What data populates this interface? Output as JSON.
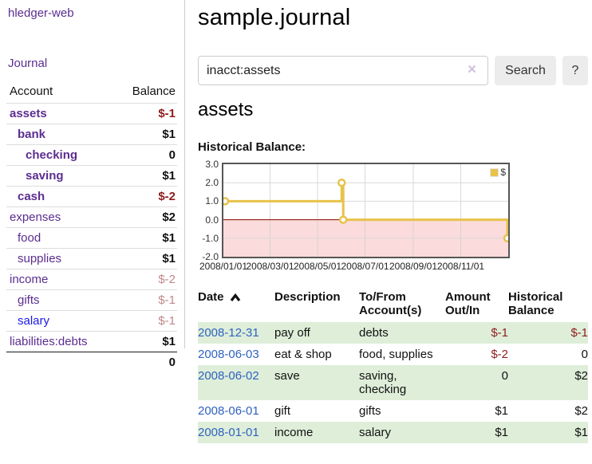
{
  "sidebar": {
    "brand": "hledger-web",
    "nav_journal": "Journal",
    "table": {
      "col_account": "Account",
      "col_balance": "Balance",
      "accounts": [
        {
          "name": "assets",
          "balance": "$-1",
          "indent": 1,
          "emphasized": true,
          "negative": "strong"
        },
        {
          "name": "bank",
          "balance": "$1",
          "indent": 2,
          "emphasized": true
        },
        {
          "name": "checking",
          "balance": "0",
          "indent": 3,
          "emphasized": true
        },
        {
          "name": "saving",
          "balance": "$1",
          "indent": 3,
          "emphasized": true
        },
        {
          "name": "cash",
          "balance": "$-2",
          "indent": 2,
          "emphasized": true,
          "negative": "strong"
        },
        {
          "name": "expenses",
          "balance": "$2",
          "indent": 1
        },
        {
          "name": "food",
          "balance": "$1",
          "indent": 2
        },
        {
          "name": "supplies",
          "balance": "$1",
          "indent": 2
        },
        {
          "name": "income",
          "balance": "$-2",
          "indent": 1,
          "negative": "soft"
        },
        {
          "name": "gifts",
          "balance": "$-1",
          "indent": 2,
          "negative": "soft"
        },
        {
          "name": "salary",
          "balance": "$-1",
          "indent": 2,
          "negative": "soft",
          "link": "blue"
        },
        {
          "name": "liabilities:debts",
          "balance": "$1",
          "indent": 1
        }
      ],
      "total": "0"
    }
  },
  "header": {
    "title": "sample.journal"
  },
  "search": {
    "query": "inacct:assets",
    "clear_icon": "×",
    "search_label": "Search",
    "help_label": "?"
  },
  "account_page": {
    "heading": "assets",
    "chart_title": "Historical Balance:"
  },
  "chart_data": {
    "type": "line",
    "title": "Historical Balance:",
    "step": "after",
    "x": [
      "2008-01-01",
      "2008-06-01",
      "2008-06-03",
      "2008-12-31"
    ],
    "series": [
      {
        "name": "$",
        "color": "#e8c24a",
        "values": [
          1,
          2,
          0,
          -1
        ]
      }
    ],
    "xlim": [
      "2008-01-01",
      "2009-01-01"
    ],
    "ylim": [
      -2,
      3
    ],
    "yticks": [
      "3.0",
      "2.0",
      "1.0",
      "0.0",
      "-1.0",
      "-2.0"
    ],
    "xticks": [
      "2008/01/01",
      "2008/03/01",
      "2008/05/01",
      "2008/07/01",
      "2008/09/01",
      "2008/11/01"
    ],
    "legend_position": "top-right",
    "grid": true,
    "negative_region_fill": "#fbdbdb",
    "zero_line_color": "#8b0000",
    "marker": "open-circle"
  },
  "register": {
    "columns": [
      "Date",
      "Description",
      "To/From Account(s)",
      "Amount Out/In",
      "Historical Balance"
    ],
    "sorted_by": "Date",
    "sort_direction": "ascending",
    "rows": [
      {
        "date": "2008-12-31",
        "description": "pay off",
        "accounts": "debts",
        "amount": "$-1",
        "balance": "$-1"
      },
      {
        "date": "2008-06-03",
        "description": "eat & shop",
        "accounts": "food, supplies",
        "amount": "$-2",
        "balance": "0"
      },
      {
        "date": "2008-06-02",
        "description": "save",
        "accounts": "saving, checking",
        "amount": "0",
        "balance": "$2"
      },
      {
        "date": "2008-06-01",
        "description": "gift",
        "accounts": "gifts",
        "amount": "$1",
        "balance": "$2"
      },
      {
        "date": "2008-01-01",
        "description": "income",
        "accounts": "salary",
        "amount": "$1",
        "balance": "$1"
      }
    ]
  }
}
